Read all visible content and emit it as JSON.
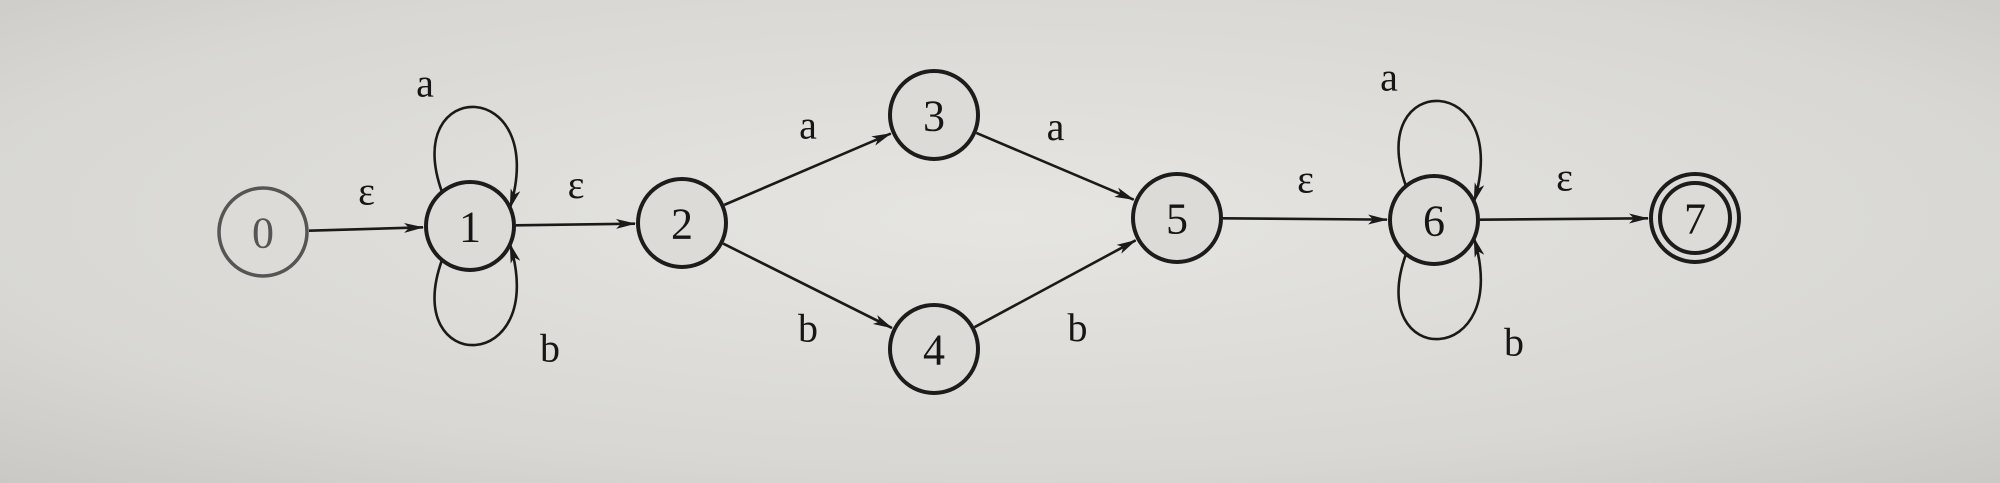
{
  "diagram": {
    "type": "nfa-state-diagram",
    "states": [
      {
        "id": "0",
        "label": "0",
        "start": true
      },
      {
        "id": "1",
        "label": "1"
      },
      {
        "id": "2",
        "label": "2"
      },
      {
        "id": "3",
        "label": "3"
      },
      {
        "id": "4",
        "label": "4"
      },
      {
        "id": "5",
        "label": "5"
      },
      {
        "id": "6",
        "label": "6"
      },
      {
        "id": "7",
        "label": "7",
        "accepting": true
      }
    ],
    "transitions": [
      {
        "from": "0",
        "to": "1",
        "label": "ε"
      },
      {
        "from": "1",
        "to": "1",
        "label": "a"
      },
      {
        "from": "1",
        "to": "1",
        "label": "b"
      },
      {
        "from": "1",
        "to": "2",
        "label": "ε"
      },
      {
        "from": "2",
        "to": "3",
        "label": "a"
      },
      {
        "from": "2",
        "to": "4",
        "label": "b"
      },
      {
        "from": "3",
        "to": "5",
        "label": "a"
      },
      {
        "from": "4",
        "to": "5",
        "label": "b"
      },
      {
        "from": "5",
        "to": "6",
        "label": "ε"
      },
      {
        "from": "6",
        "to": "6",
        "label": "a"
      },
      {
        "from": "6",
        "to": "6",
        "label": "b"
      },
      {
        "from": "6",
        "to": "7",
        "label": "ε"
      }
    ]
  }
}
